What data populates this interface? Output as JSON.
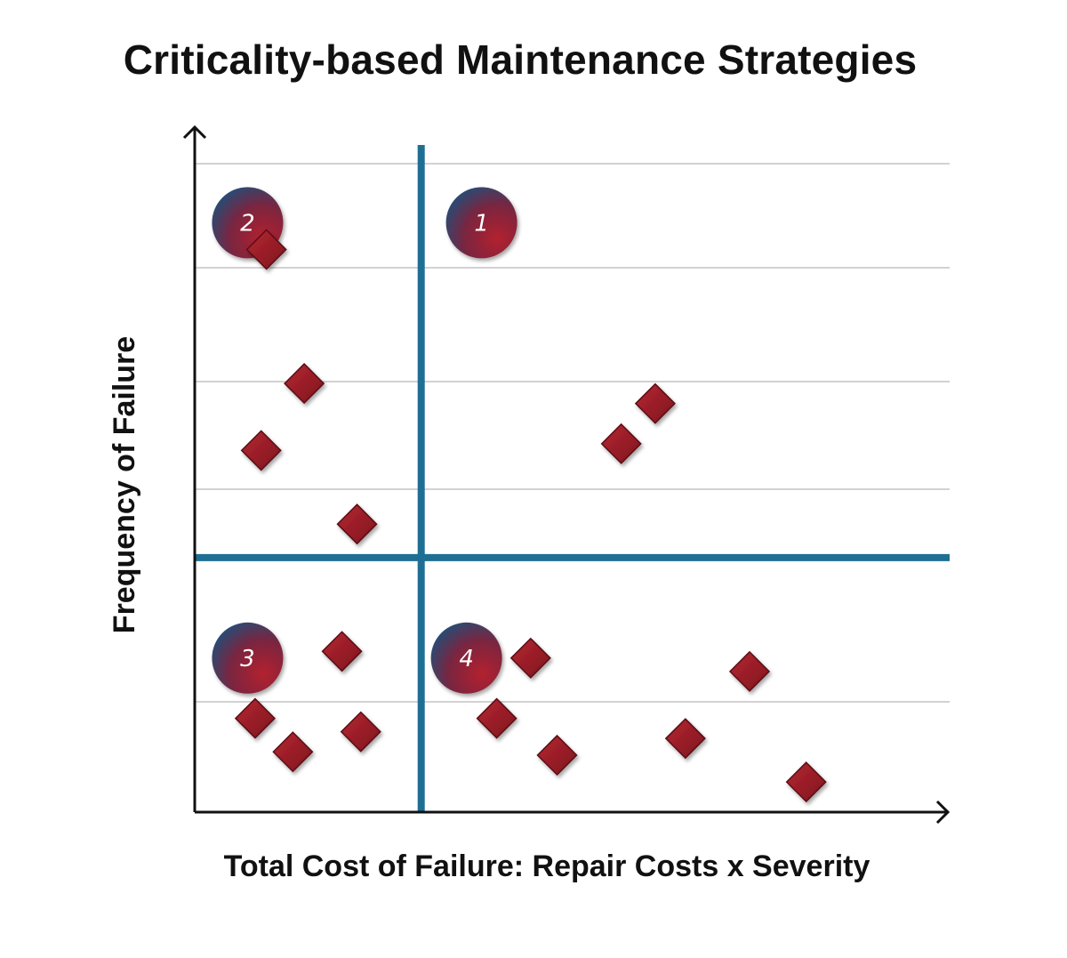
{
  "chart_data": {
    "type": "scatter",
    "title": "Criticality-based Maintenance Strategies",
    "xlabel": "Total Cost of Failure: Repair Costs x Severity",
    "ylabel": "Frequency of Failure",
    "xlim": [
      0,
      10
    ],
    "ylim": [
      0,
      10
    ],
    "grid": true,
    "quadrant_dividers": {
      "x": 3,
      "y": 3.8
    },
    "quadrants": [
      {
        "label": "1",
        "x": 3.8,
        "y": 8.8
      },
      {
        "label": "2",
        "x": 0.7,
        "y": 8.8
      },
      {
        "label": "3",
        "x": 0.7,
        "y": 2.3
      },
      {
        "label": "4",
        "x": 3.6,
        "y": 2.3
      }
    ],
    "series": [
      {
        "points": [
          {
            "x": 0.95,
            "y": 8.4
          },
          {
            "x": 1.45,
            "y": 6.4
          },
          {
            "x": 0.88,
            "y": 5.4
          },
          {
            "x": 2.15,
            "y": 4.3
          },
          {
            "x": 6.1,
            "y": 6.1
          },
          {
            "x": 5.65,
            "y": 5.5
          },
          {
            "x": 1.95,
            "y": 2.4
          },
          {
            "x": 0.8,
            "y": 1.4
          },
          {
            "x": 1.3,
            "y": 0.9
          },
          {
            "x": 2.2,
            "y": 1.2
          },
          {
            "x": 4.45,
            "y": 2.3
          },
          {
            "x": 4.0,
            "y": 1.4
          },
          {
            "x": 4.8,
            "y": 0.85
          },
          {
            "x": 7.35,
            "y": 2.1
          },
          {
            "x": 6.5,
            "y": 1.1
          },
          {
            "x": 8.1,
            "y": 0.45
          }
        ]
      }
    ],
    "colors": {
      "divider": "#1e6f93",
      "marker": "#a3212b",
      "marker_edge": "#5a0f15",
      "grid": "#d2d2d2",
      "axis": "#111111",
      "badge_from": "#1f4f7a",
      "badge_to": "#b3232e"
    }
  }
}
